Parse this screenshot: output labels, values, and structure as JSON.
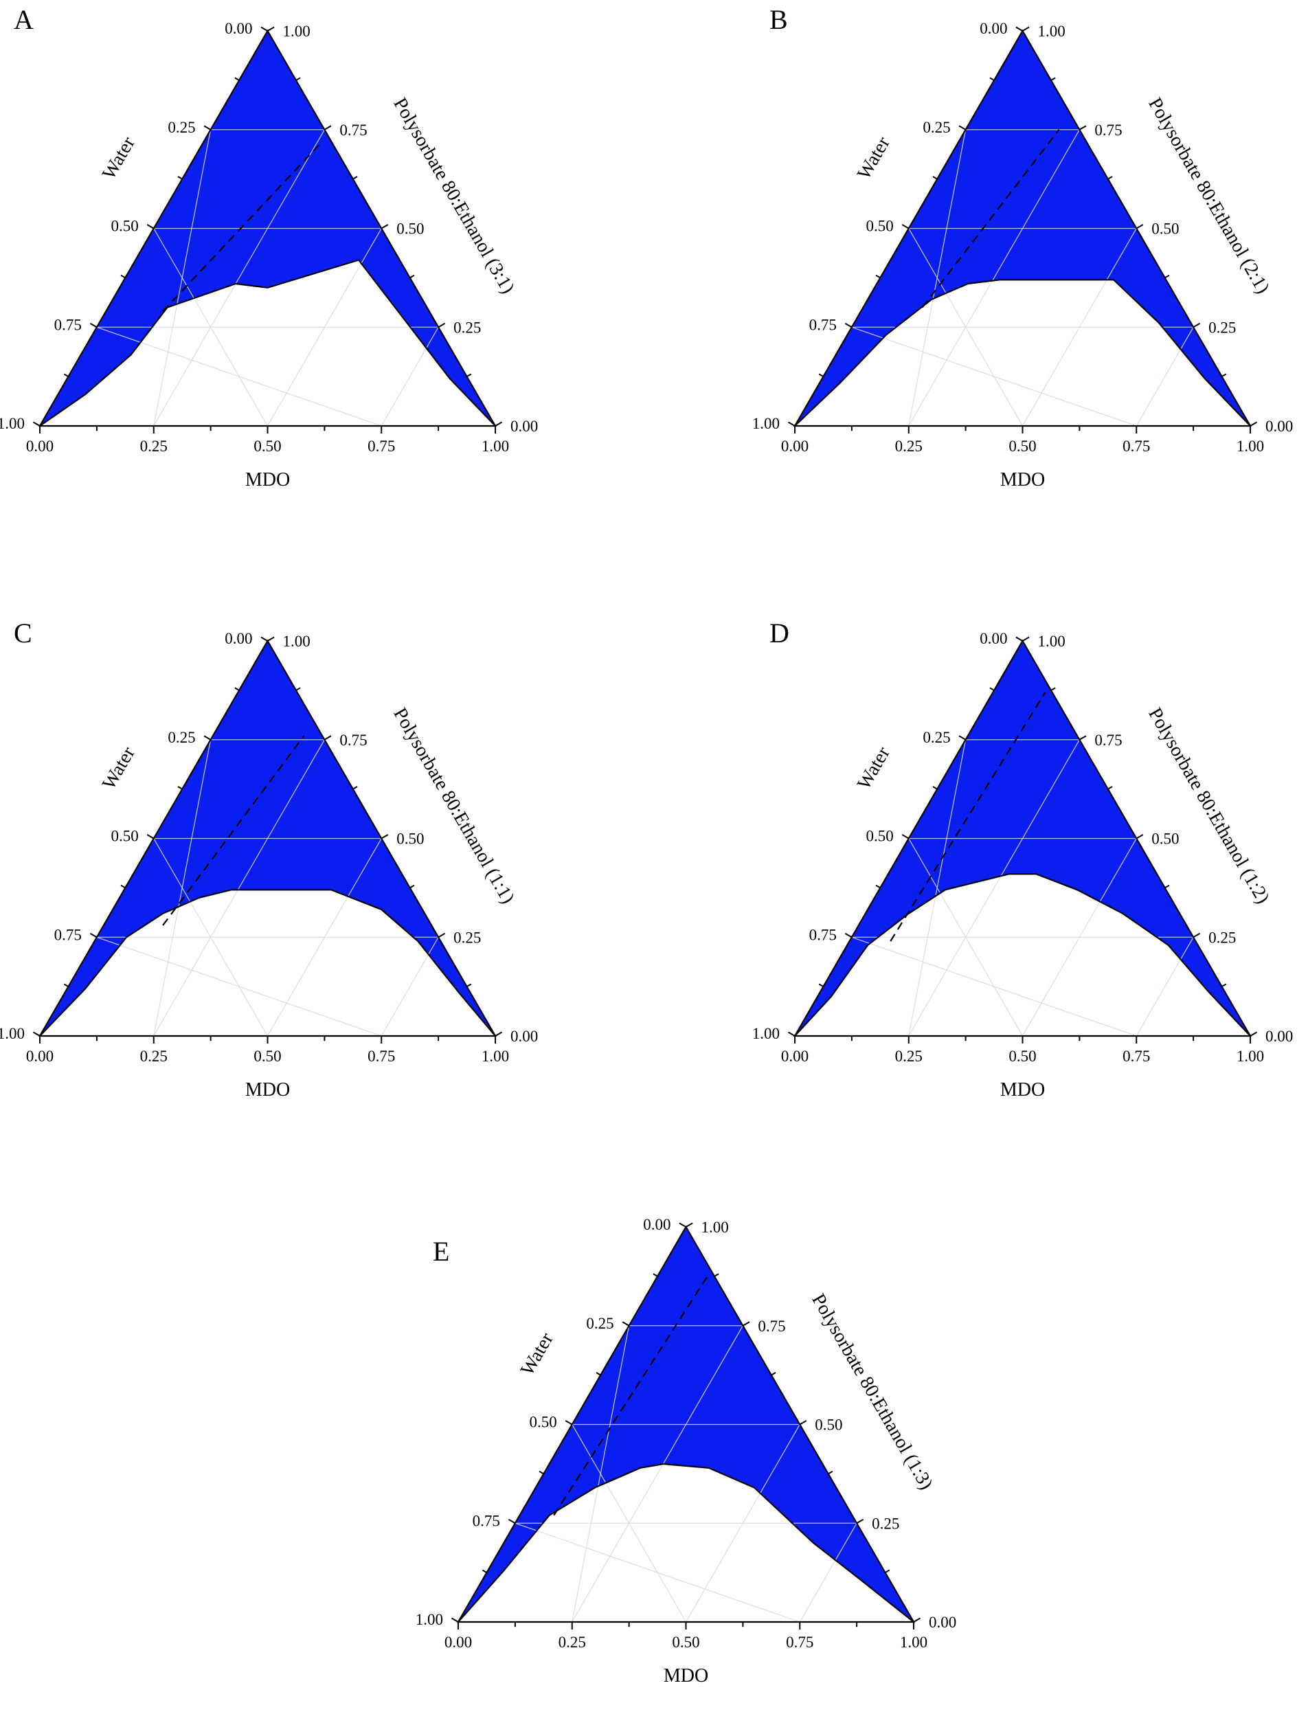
{
  "colors": {
    "region_fill": "#0a1ef0",
    "outline": "#000000",
    "grid": "#d9d9ef",
    "dashed_line": "#000000"
  },
  "chart_data": [
    {
      "type": "ternary",
      "panel": "A",
      "bottom_axis_label": "MDO",
      "left_axis_label": "Water",
      "right_axis_label": "Polysorbate 80:Ethanol (3:1)",
      "bottom_ticks": [
        "0.00",
        "0.25",
        "0.50",
        "0.75",
        "1.00"
      ],
      "left_ticks": [
        "1.00",
        "0.75",
        "0.50",
        "0.25",
        "0.00"
      ],
      "right_ticks": [
        "0.00",
        "0.25",
        "0.50",
        "0.75",
        "1.00"
      ],
      "grid": true,
      "region_boundary": [
        [
          0.0,
          0.0
        ],
        [
          0.1,
          0.08
        ],
        [
          0.2,
          0.18
        ],
        [
          0.28,
          0.3
        ],
        [
          0.33,
          0.32
        ],
        [
          0.43,
          0.36
        ],
        [
          0.5,
          0.35
        ],
        [
          0.7,
          0.42
        ],
        [
          0.78,
          0.3
        ],
        [
          0.9,
          0.12
        ],
        [
          1.0,
          0.0
        ]
      ],
      "dashed_line": [
        [
          0.27,
          0.29
        ],
        [
          0.62,
          0.72
        ]
      ]
    },
    {
      "type": "ternary",
      "panel": "B",
      "bottom_axis_label": "MDO",
      "left_axis_label": "Water",
      "right_axis_label": "Polysorbate 80:Ethanol (2:1)",
      "bottom_ticks": [
        "0.00",
        "0.25",
        "0.50",
        "0.75",
        "1.00"
      ],
      "left_ticks": [
        "1.00",
        "0.75",
        "0.50",
        "0.25",
        "0.00"
      ],
      "right_ticks": [
        "0.00",
        "0.25",
        "0.50",
        "0.75",
        "1.00"
      ],
      "grid": true,
      "region_boundary": [
        [
          0.0,
          0.0
        ],
        [
          0.1,
          0.11
        ],
        [
          0.2,
          0.23
        ],
        [
          0.3,
          0.32
        ],
        [
          0.38,
          0.36
        ],
        [
          0.45,
          0.37
        ],
        [
          0.5,
          0.37
        ],
        [
          0.7,
          0.37
        ],
        [
          0.8,
          0.26
        ],
        [
          0.9,
          0.12
        ],
        [
          1.0,
          0.0
        ]
      ],
      "dashed_line": [
        [
          0.28,
          0.3
        ],
        [
          0.58,
          0.75
        ]
      ]
    },
    {
      "type": "ternary",
      "panel": "C",
      "bottom_axis_label": "MDO",
      "left_axis_label": "Water",
      "right_axis_label": "Polysorbate 80:Ethanol (1:1)",
      "bottom_ticks": [
        "0.00",
        "0.25",
        "0.50",
        "0.75",
        "1.00"
      ],
      "left_ticks": [
        "1.00",
        "0.75",
        "0.50",
        "0.25",
        "0.00"
      ],
      "right_ticks": [
        "0.00",
        "0.25",
        "0.50",
        "0.75",
        "1.00"
      ],
      "grid": true,
      "region_boundary": [
        [
          0.0,
          0.0
        ],
        [
          0.1,
          0.12
        ],
        [
          0.19,
          0.25
        ],
        [
          0.27,
          0.31
        ],
        [
          0.35,
          0.35
        ],
        [
          0.42,
          0.37
        ],
        [
          0.64,
          0.37
        ],
        [
          0.75,
          0.32
        ],
        [
          0.83,
          0.24
        ],
        [
          0.92,
          0.11
        ],
        [
          1.0,
          0.0
        ]
      ],
      "dashed_line": [
        [
          0.27,
          0.28
        ],
        [
          0.58,
          0.76
        ]
      ]
    },
    {
      "type": "ternary",
      "panel": "D",
      "bottom_axis_label": "MDO",
      "left_axis_label": "Water",
      "right_axis_label": "Polysorbate 80:Ethanol (1:2)",
      "bottom_ticks": [
        "0.00",
        "0.25",
        "0.50",
        "0.75",
        "1.00"
      ],
      "left_ticks": [
        "1.00",
        "0.75",
        "0.50",
        "0.25",
        "0.00"
      ],
      "right_ticks": [
        "0.00",
        "0.25",
        "0.50",
        "0.75",
        "1.00"
      ],
      "grid": true,
      "region_boundary": [
        [
          0.0,
          0.0
        ],
        [
          0.08,
          0.1
        ],
        [
          0.16,
          0.23
        ],
        [
          0.25,
          0.31
        ],
        [
          0.33,
          0.37
        ],
        [
          0.4,
          0.39
        ],
        [
          0.47,
          0.41
        ],
        [
          0.53,
          0.41
        ],
        [
          0.62,
          0.37
        ],
        [
          0.72,
          0.31
        ],
        [
          0.82,
          0.23
        ],
        [
          0.91,
          0.11
        ],
        [
          1.0,
          0.0
        ]
      ],
      "dashed_line": [
        [
          0.21,
          0.24
        ],
        [
          0.55,
          0.87
        ]
      ]
    },
    {
      "type": "ternary",
      "panel": "E",
      "bottom_axis_label": "MDO",
      "left_axis_label": "Water",
      "right_axis_label": "Polysorbate 80:Ethanol (1:3)",
      "bottom_ticks": [
        "0.00",
        "0.25",
        "0.50",
        "0.75",
        "1.00"
      ],
      "left_ticks": [
        "1.00",
        "0.75",
        "0.50",
        "0.25",
        "0.00"
      ],
      "right_ticks": [
        "0.00",
        "0.25",
        "0.50",
        "0.75",
        "1.00"
      ],
      "grid": true,
      "region_boundary": [
        [
          0.0,
          0.0
        ],
        [
          0.1,
          0.13
        ],
        [
          0.2,
          0.27
        ],
        [
          0.3,
          0.34
        ],
        [
          0.4,
          0.39
        ],
        [
          0.45,
          0.4
        ],
        [
          0.55,
          0.39
        ],
        [
          0.65,
          0.34
        ],
        [
          0.78,
          0.2
        ],
        [
          0.88,
          0.11
        ],
        [
          1.0,
          0.0
        ]
      ],
      "dashed_line": [
        [
          0.21,
          0.27
        ],
        [
          0.55,
          0.88
        ]
      ]
    }
  ]
}
